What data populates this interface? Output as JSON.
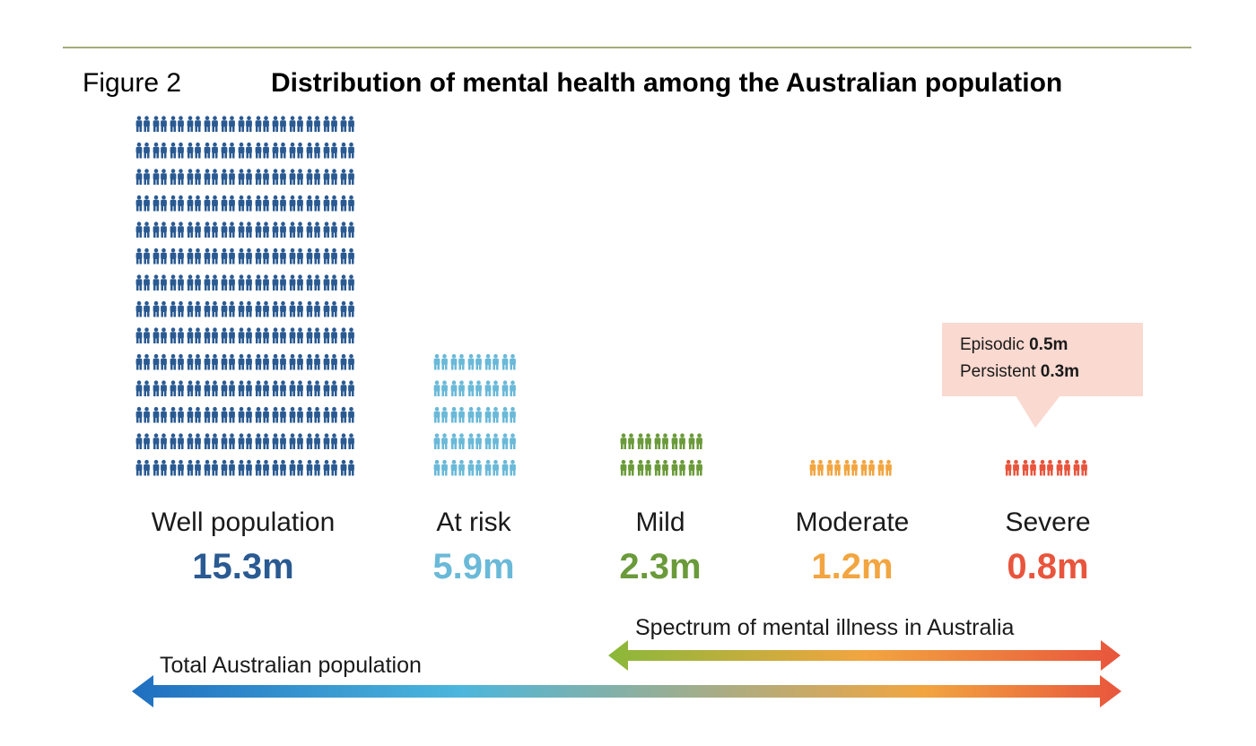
{
  "figure_label": "Figure 2",
  "chart_data": {
    "type": "bar",
    "title": "Distribution of mental health among the Australian population",
    "categories": [
      "Well population",
      "At risk",
      "Mild",
      "Moderate",
      "Severe"
    ],
    "values": [
      15.3,
      5.9,
      2.3,
      1.2,
      0.8
    ],
    "value_labels": [
      "15.3m",
      "5.9m",
      "2.3m",
      "1.2m",
      "0.8m"
    ],
    "unit": "m",
    "colors": [
      "#2a5a92",
      "#6ab9d8",
      "#6a9a3a",
      "#f2a540",
      "#e8553c"
    ],
    "icon": "person-pair-icon",
    "callout": {
      "category": "Severe",
      "lines": [
        {
          "label": "Episodic",
          "value": "0.5m"
        },
        {
          "label": "Persistent",
          "value": "0.3m"
        }
      ]
    },
    "ranges": [
      {
        "label": "Spectrum of mental illness in Australia",
        "from": "Mild",
        "to": "Severe",
        "colors": [
          "#8ab83a",
          "#f2a540",
          "#e8553c"
        ]
      },
      {
        "label": "Total Australian population",
        "from": "Well population",
        "to": "Severe",
        "colors": [
          "#1f6fc0",
          "#4bb6dd",
          "#f2a540",
          "#e8553c"
        ]
      }
    ]
  }
}
